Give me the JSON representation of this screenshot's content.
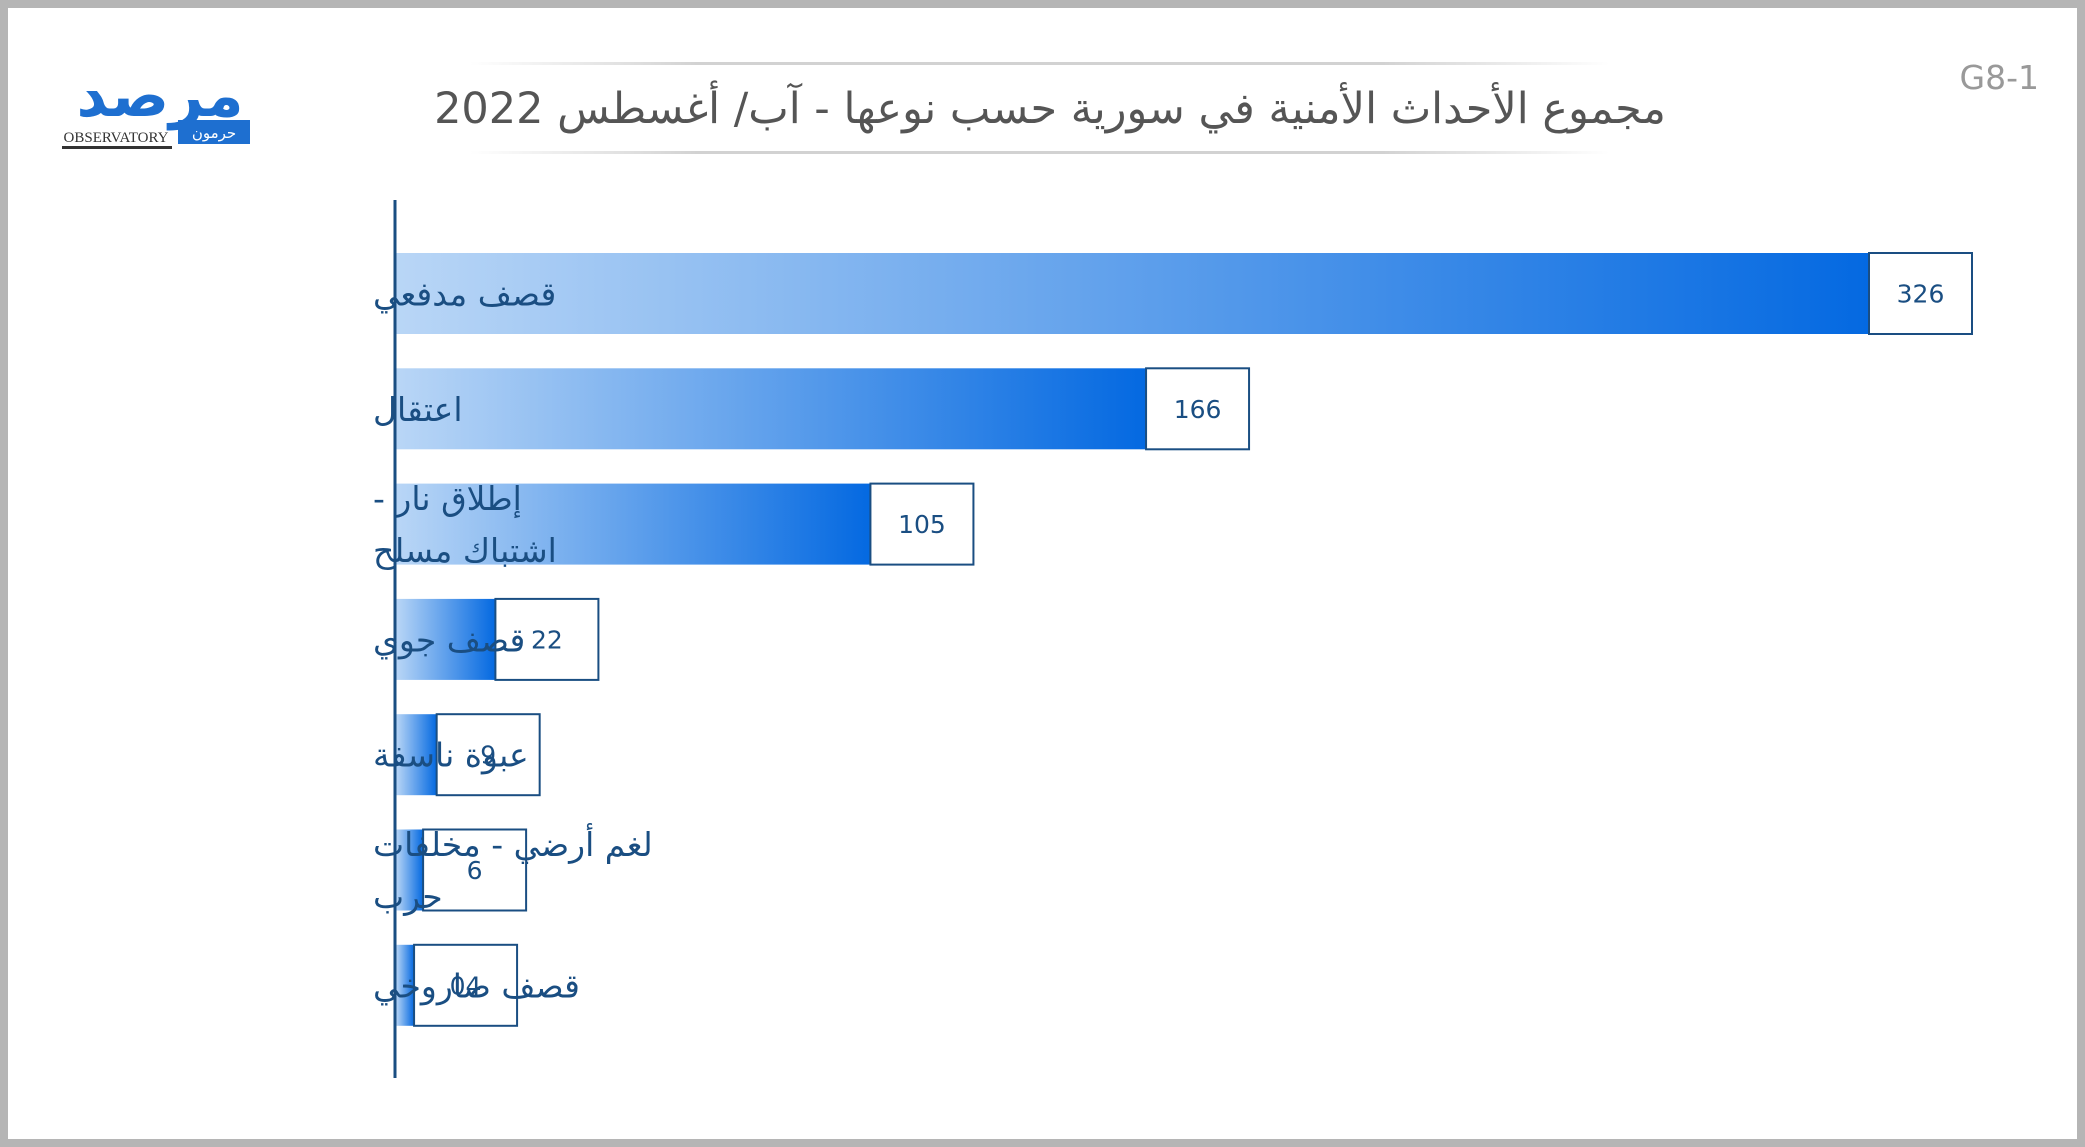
{
  "figure_code": "G8-1",
  "title": "مجموع الأحداث الأمنية في سورية حسب نوعها - آب/ أغسطس 2022",
  "logo": {
    "main_text": "مرصد",
    "sub_text": "حرمون",
    "english_text": "OBSERVATORY"
  },
  "colors": {
    "bar_dark": "#0469e1",
    "bar_light": "#b9d6f6",
    "label_text": "#1a4e82",
    "axis": "#1a4e82",
    "title_text": "#555555",
    "logo_blue": "#1e6fd0"
  },
  "chart_data": {
    "type": "bar",
    "orientation": "horizontal",
    "categories": [
      [
        "قصف مدفعي"
      ],
      [
        "اعتقال"
      ],
      [
        "إطلاق نار -",
        "اشتباك مسلح"
      ],
      [
        "قصف جوي"
      ],
      [
        "عبوة ناسفة"
      ],
      [
        "لغم أرضي - مخلفات",
        "حرب"
      ],
      [
        "قصف صاروخي"
      ]
    ],
    "values": [
      326,
      166,
      105,
      22,
      9,
      6,
      4
    ],
    "value_labels": [
      "326",
      "166",
      "105",
      "22",
      "9",
      "6",
      "04"
    ],
    "xlim": [
      0,
      326
    ],
    "grid": false,
    "legend": "none"
  }
}
